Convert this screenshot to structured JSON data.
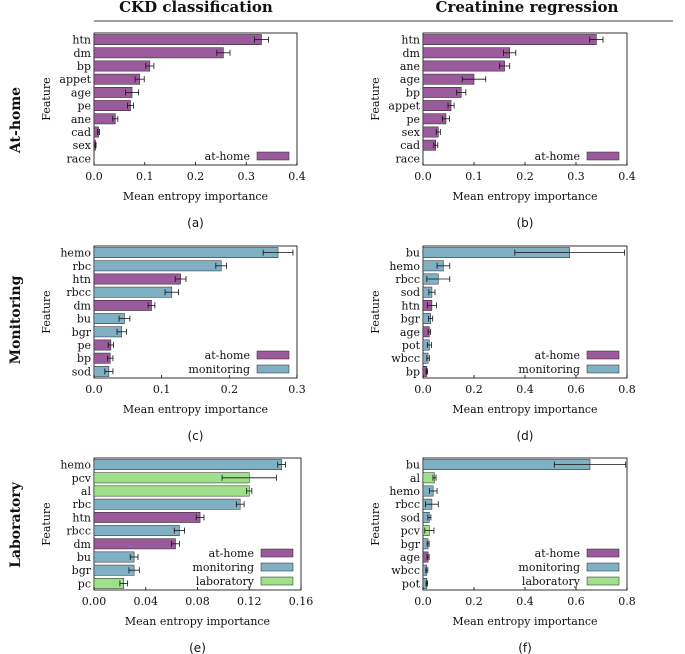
{
  "colors": {
    "at-home": "#9b5a9b",
    "monitoring": "#7fb0c4",
    "laboratory": "#9fe08a"
  },
  "columns": [
    "CKD classification",
    "Creatinine regression"
  ],
  "rows": [
    "At-home",
    "Monitoring",
    "Laboratory"
  ],
  "ylabel": "Feature",
  "xlabel": "Mean entropy importance",
  "legend": {
    "at-home": "at-home",
    "monitoring": "monitoring",
    "laboratory": "laboratory"
  },
  "chart_data": [
    {
      "panel": "(a)",
      "type": "bar",
      "orientation": "horizontal",
      "xlim": [
        0,
        0.4
      ],
      "ticks": [
        "0.0",
        "0.1",
        "0.2",
        "0.3",
        "0.4"
      ],
      "tick_values": [
        0,
        0.1,
        0.2,
        0.3,
        0.4
      ],
      "legend_entries": [
        "at-home"
      ],
      "categories": [
        "htn",
        "dm",
        "bp",
        "appet",
        "age",
        "pe",
        "ane",
        "cad",
        "sex",
        "race"
      ],
      "values": [
        0.33,
        0.255,
        0.11,
        0.09,
        0.075,
        0.072,
        0.042,
        0.009,
        0.003,
        0.0
      ],
      "errors": [
        0.014,
        0.013,
        0.008,
        0.009,
        0.013,
        0.006,
        0.005,
        0.002,
        0.001,
        0.0
      ],
      "groups": [
        "at-home",
        "at-home",
        "at-home",
        "at-home",
        "at-home",
        "at-home",
        "at-home",
        "at-home",
        "at-home",
        "at-home"
      ]
    },
    {
      "panel": "(b)",
      "type": "bar",
      "orientation": "horizontal",
      "xlim": [
        0,
        0.4
      ],
      "ticks": [
        "0.0",
        "0.1",
        "0.2",
        "0.3",
        "0.4"
      ],
      "tick_values": [
        0,
        0.1,
        0.2,
        0.3,
        0.4
      ],
      "legend_entries": [
        "at-home"
      ],
      "categories": [
        "htn",
        "dm",
        "ane",
        "age",
        "bp",
        "appet",
        "pe",
        "sex",
        "cad",
        "race"
      ],
      "values": [
        0.34,
        0.17,
        0.16,
        0.1,
        0.075,
        0.055,
        0.045,
        0.03,
        0.025,
        0.0
      ],
      "errors": [
        0.013,
        0.012,
        0.01,
        0.023,
        0.009,
        0.006,
        0.007,
        0.004,
        0.004,
        0.0
      ],
      "groups": [
        "at-home",
        "at-home",
        "at-home",
        "at-home",
        "at-home",
        "at-home",
        "at-home",
        "at-home",
        "at-home",
        "at-home"
      ]
    },
    {
      "panel": "(c)",
      "type": "bar",
      "orientation": "horizontal",
      "xlim": [
        0,
        0.3
      ],
      "ticks": [
        "0.0",
        "0.1",
        "0.2",
        "0.3"
      ],
      "tick_values": [
        0,
        0.1,
        0.2,
        0.3
      ],
      "legend_entries": [
        "at-home",
        "monitoring"
      ],
      "categories": [
        "hemo",
        "rbc",
        "htn",
        "rbcc",
        "dm",
        "bu",
        "bgr",
        "pe",
        "bp",
        "sod"
      ],
      "values": [
        0.272,
        0.188,
        0.128,
        0.115,
        0.085,
        0.045,
        0.041,
        0.025,
        0.024,
        0.022
      ],
      "errors": [
        0.022,
        0.008,
        0.008,
        0.01,
        0.005,
        0.008,
        0.007,
        0.004,
        0.004,
        0.006
      ],
      "groups": [
        "monitoring",
        "monitoring",
        "at-home",
        "monitoring",
        "at-home",
        "monitoring",
        "monitoring",
        "at-home",
        "at-home",
        "monitoring"
      ]
    },
    {
      "panel": "(d)",
      "type": "bar",
      "orientation": "horizontal",
      "xlim": [
        0,
        0.8
      ],
      "ticks": [
        "0.0",
        "0.2",
        "0.4",
        "0.6",
        "0.8"
      ],
      "tick_values": [
        0,
        0.2,
        0.4,
        0.6,
        0.8
      ],
      "legend_entries": [
        "at-home",
        "monitoring"
      ],
      "categories": [
        "bu",
        "hemo",
        "rbcc",
        "sod",
        "htn",
        "bgr",
        "age",
        "pot",
        "wbcc",
        "bp"
      ],
      "values": [
        0.575,
        0.08,
        0.06,
        0.035,
        0.035,
        0.03,
        0.025,
        0.025,
        0.02,
        0.015
      ],
      "errors": [
        0.215,
        0.025,
        0.045,
        0.012,
        0.018,
        0.008,
        0.005,
        0.008,
        0.005,
        0.003
      ],
      "groups": [
        "monitoring",
        "monitoring",
        "monitoring",
        "monitoring",
        "at-home",
        "monitoring",
        "at-home",
        "monitoring",
        "monitoring",
        "at-home"
      ]
    },
    {
      "panel": "(e)",
      "type": "bar",
      "orientation": "horizontal",
      "xlim": [
        0,
        0.16
      ],
      "ticks": [
        "0.00",
        "0.04",
        "0.08",
        "0.12",
        "0.16"
      ],
      "tick_values": [
        0,
        0.04,
        0.08,
        0.12,
        0.16
      ],
      "legend_entries": [
        "at-home",
        "monitoring",
        "laboratory"
      ],
      "categories": [
        "hemo",
        "pcv",
        "al",
        "rbc",
        "htn",
        "rbcc",
        "dm",
        "bu",
        "bgr",
        "pc"
      ],
      "values": [
        0.145,
        0.12,
        0.12,
        0.113,
        0.082,
        0.066,
        0.063,
        0.031,
        0.031,
        0.023
      ],
      "errors": [
        0.003,
        0.021,
        0.002,
        0.003,
        0.003,
        0.004,
        0.003,
        0.003,
        0.004,
        0.003
      ],
      "groups": [
        "monitoring",
        "laboratory",
        "laboratory",
        "monitoring",
        "at-home",
        "monitoring",
        "at-home",
        "monitoring",
        "monitoring",
        "laboratory"
      ]
    },
    {
      "panel": "(f)",
      "type": "bar",
      "orientation": "horizontal",
      "xlim": [
        0,
        0.8
      ],
      "ticks": [
        "0.0",
        "0.2",
        "0.4",
        "0.6",
        "0.8"
      ],
      "tick_values": [
        0,
        0.2,
        0.4,
        0.6,
        0.8
      ],
      "legend_entries": [
        "at-home",
        "monitoring",
        "laboratory"
      ],
      "categories": [
        "bu",
        "al",
        "hemo",
        "rbcc",
        "sod",
        "pcv",
        "bgr",
        "age",
        "wbcc",
        "pot"
      ],
      "values": [
        0.655,
        0.045,
        0.04,
        0.035,
        0.025,
        0.025,
        0.02,
        0.02,
        0.015,
        0.015
      ],
      "errors": [
        0.14,
        0.006,
        0.015,
        0.025,
        0.006,
        0.018,
        0.004,
        0.004,
        0.004,
        0.003
      ],
      "groups": [
        "monitoring",
        "laboratory",
        "monitoring",
        "monitoring",
        "monitoring",
        "laboratory",
        "monitoring",
        "at-home",
        "monitoring",
        "monitoring"
      ]
    }
  ]
}
